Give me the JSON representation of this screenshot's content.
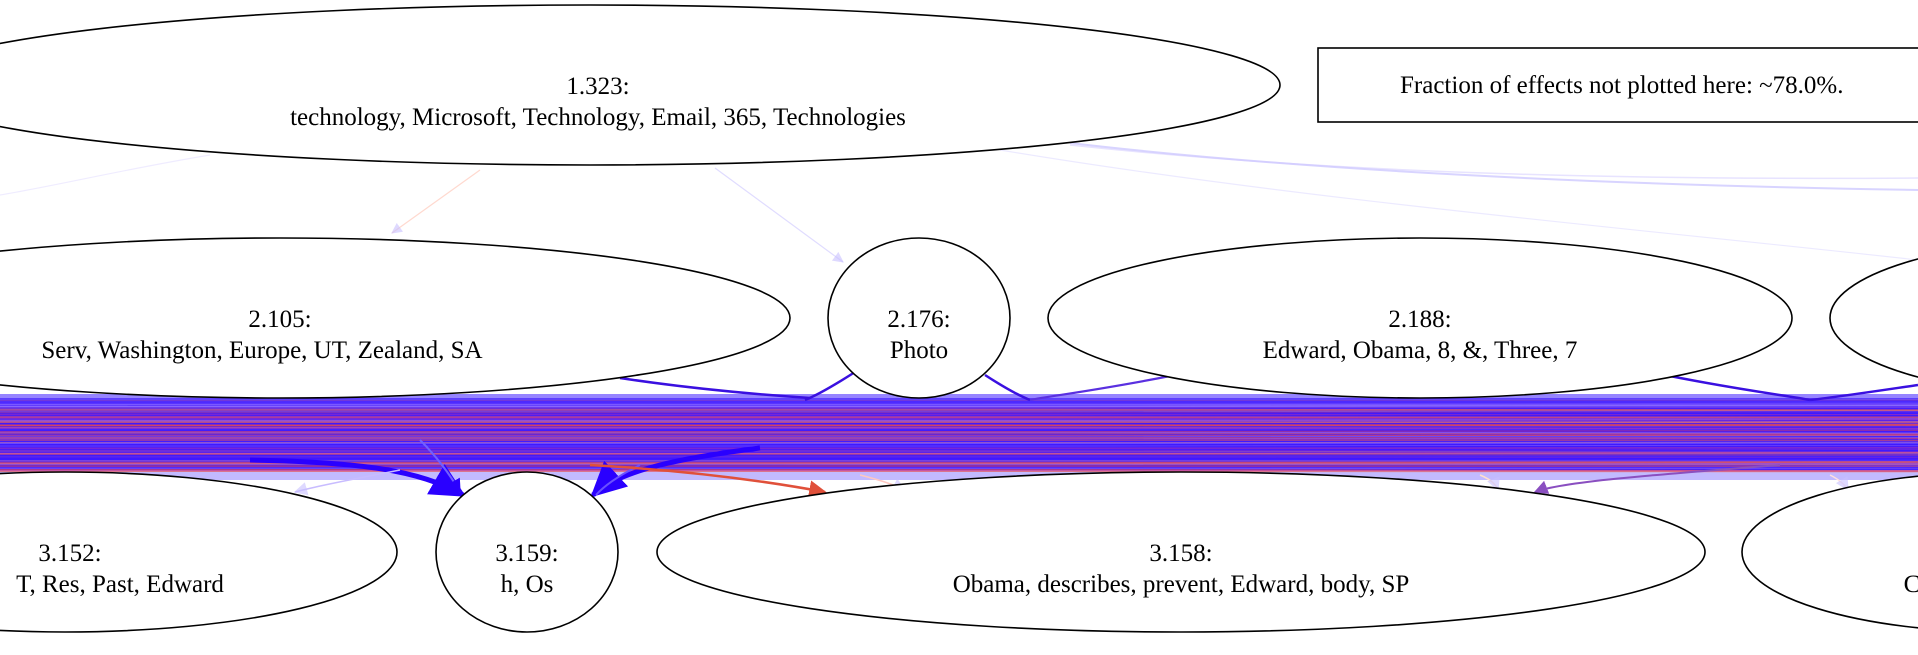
{
  "diagram": {
    "note": "Fraction of effects not plotted here: ~78.0%.",
    "nodes": [
      {
        "id": "1.323",
        "label": "1.323:",
        "features": "technology, Microsoft,  Technology, Email,  365,  Technologies"
      },
      {
        "id": "2.105",
        "label": "2.105:",
        "features": "Serv,  Washington,  Europe, UT,  Zealand,  SA"
      },
      {
        "id": "2.176",
        "label": "2.176:",
        "features": "Photo"
      },
      {
        "id": "2.188",
        "label": "2.188:",
        "features": "Edward, Obama,  8,  &, Three,  7"
      },
      {
        "id": "3.152",
        "label": "3.152:",
        "features": "T, Res, Past, Edward"
      },
      {
        "id": "3.159",
        "label": "3.159:",
        "features": "h, Os"
      },
      {
        "id": "3.158",
        "label": "3.158:",
        "features": "Obama,  describes,  prevent, Edward,  body, SP"
      },
      {
        "id": "2.partial",
        "label": "",
        "features": ""
      },
      {
        "id": "3.partial",
        "label": "",
        "features": "C"
      }
    ],
    "colors": {
      "edge_blue": "#2a00ff",
      "edge_purple": "#6a1fd0",
      "edge_red": "#e0503a",
      "node_stroke": "#000000",
      "background": "#ffffff"
    }
  }
}
